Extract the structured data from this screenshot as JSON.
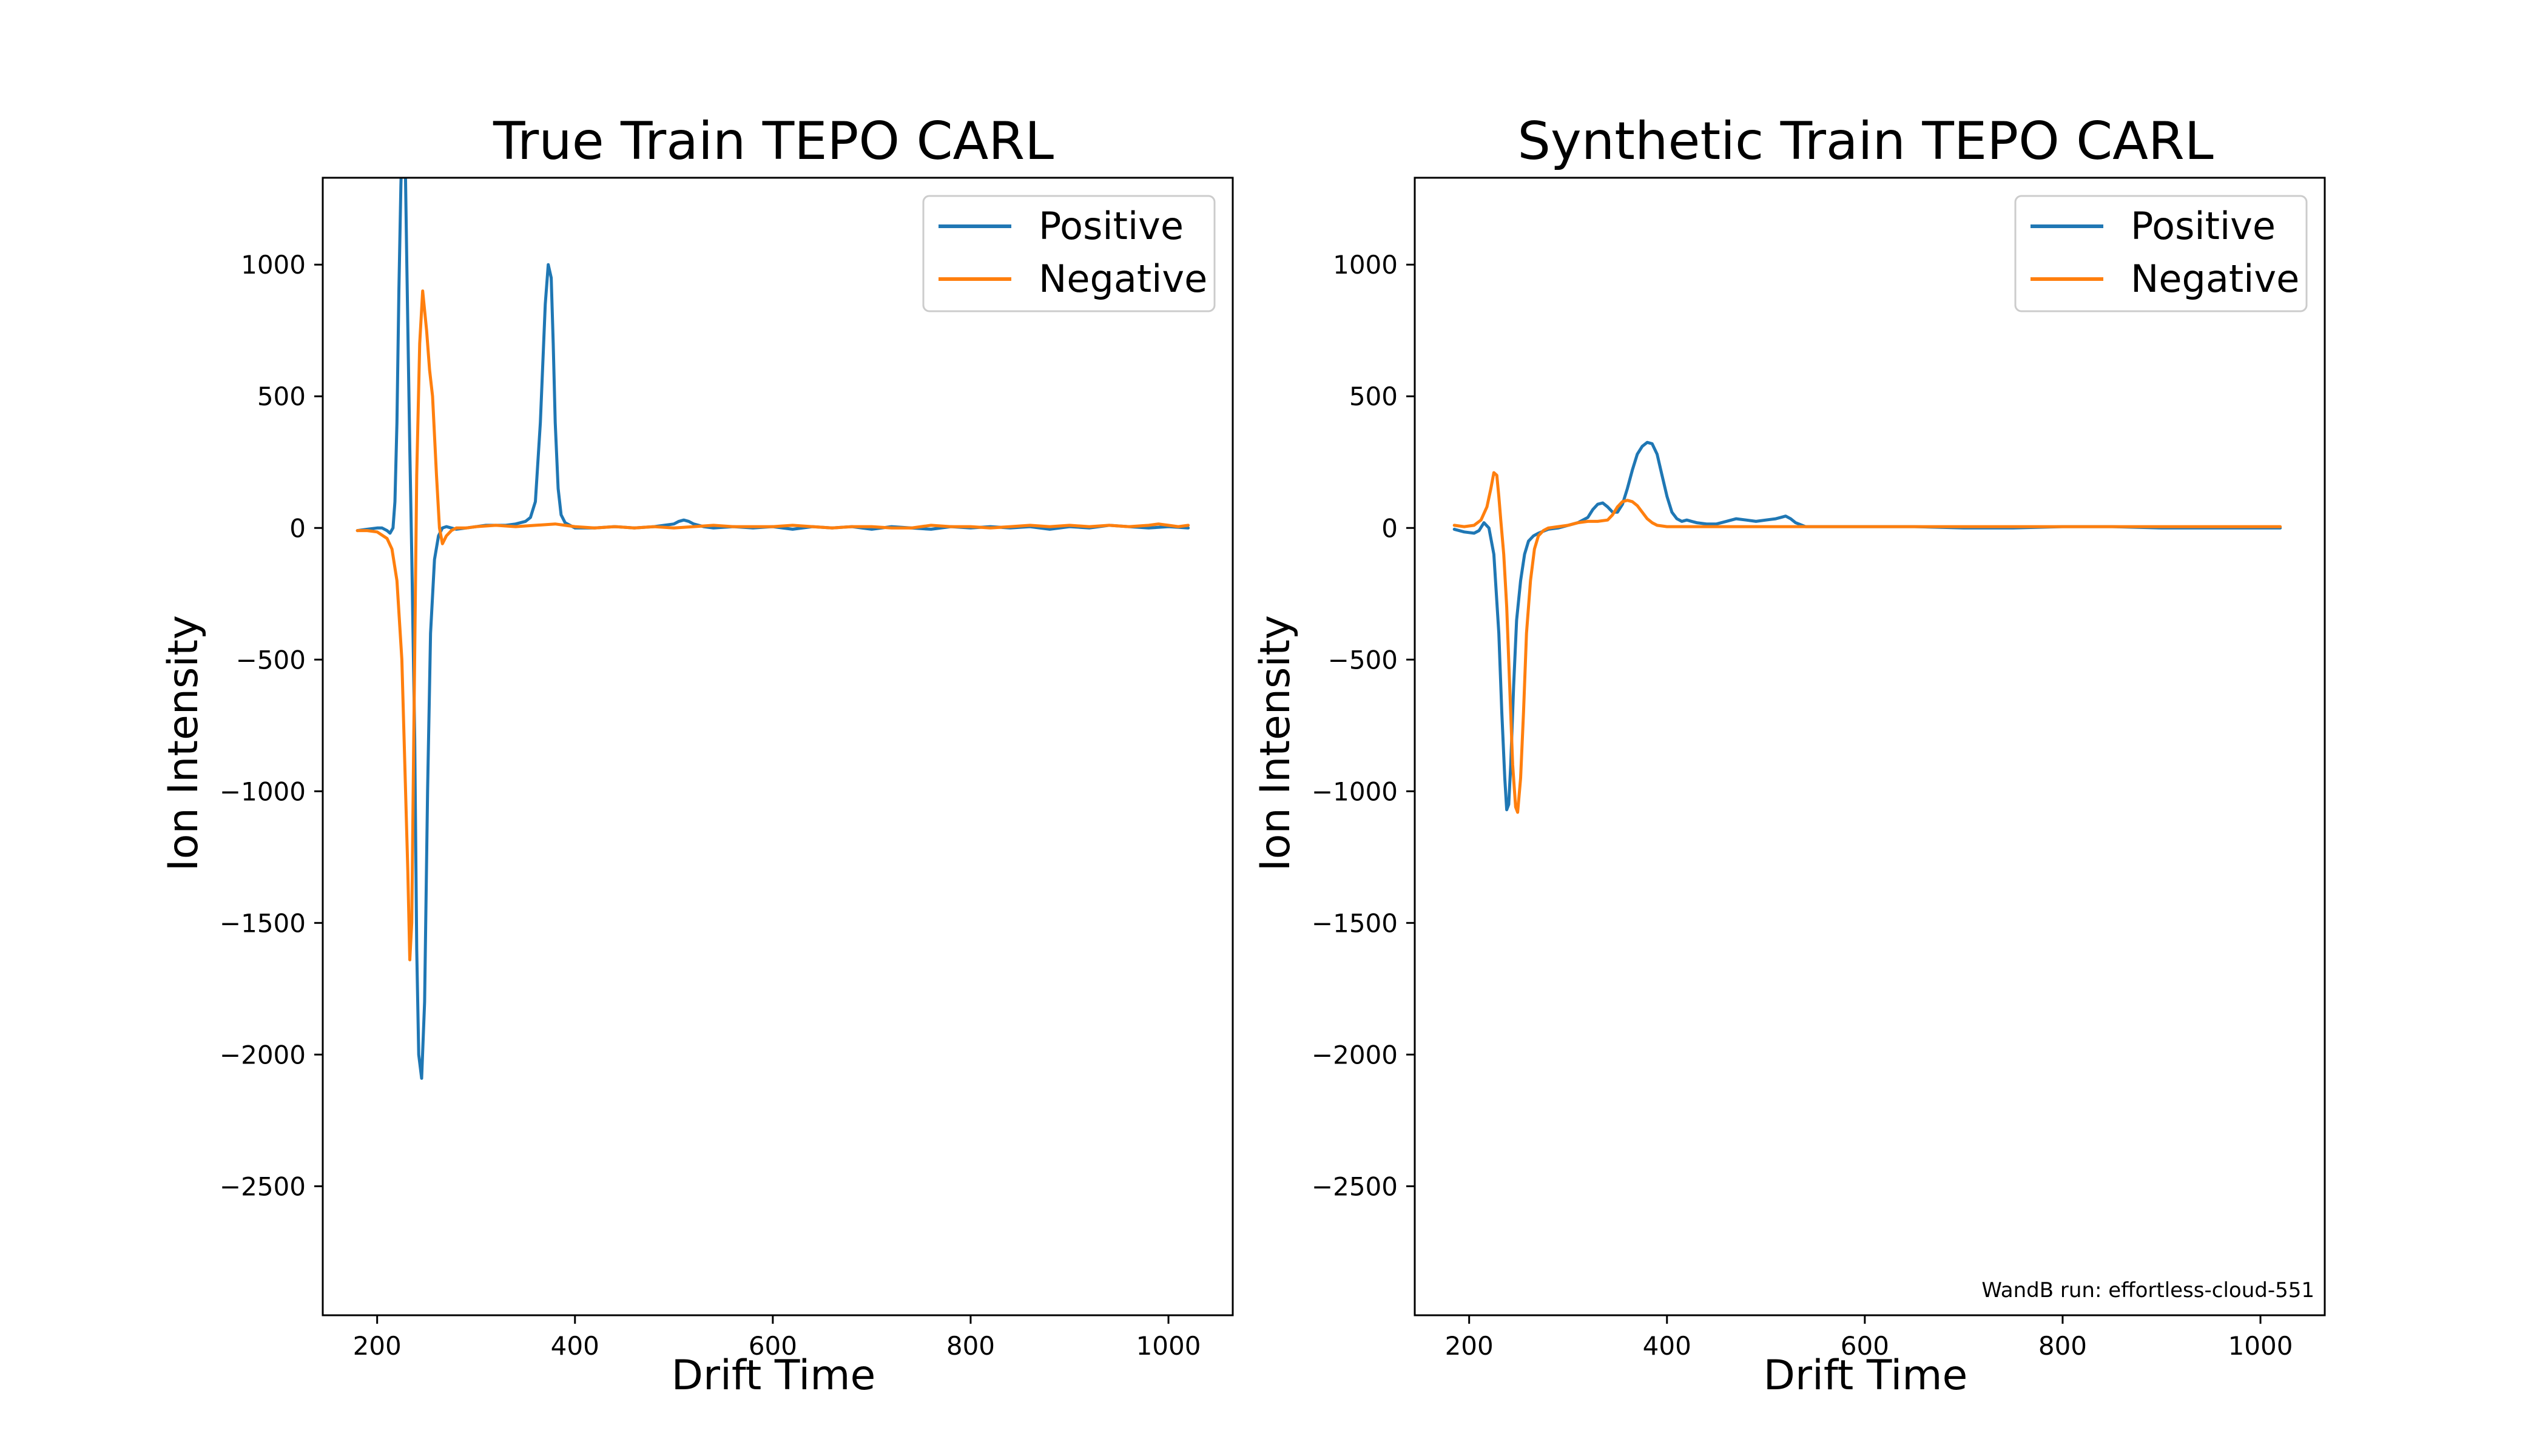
{
  "chart_data": [
    {
      "type": "line",
      "title": "True Train TEPO CARL",
      "xlabel": "Drift Time",
      "ylabel": "Ion Intensity",
      "xlim": [
        145,
        1065
      ],
      "ylim": [
        -2990,
        1330
      ],
      "xticks": [
        200,
        400,
        600,
        800,
        1000
      ],
      "xtick_labels": [
        "200",
        "400",
        "600",
        "800",
        "1000"
      ],
      "yticks": [
        1000,
        500,
        0,
        -500,
        -1000,
        -1500,
        -2000,
        -2500
      ],
      "ytick_labels": [
        "1000",
        "500",
        "0",
        "−500",
        "−1000",
        "−1500",
        "−2000",
        "−2500"
      ],
      "grid": false,
      "legend_position": "top-right",
      "annotation": "",
      "series": [
        {
          "name": "Positive",
          "color": "#1f77b4",
          "x": [
            180,
            190,
            200,
            205,
            210,
            213,
            216,
            218,
            220,
            222,
            224,
            226,
            228,
            230,
            233,
            235,
            238,
            240,
            242,
            245,
            248,
            251,
            254,
            258,
            262,
            266,
            270,
            275,
            280,
            290,
            300,
            310,
            320,
            330,
            340,
            350,
            355,
            360,
            365,
            370,
            373,
            376,
            378,
            380,
            383,
            386,
            390,
            395,
            400,
            410,
            420,
            440,
            460,
            480,
            500,
            505,
            510,
            515,
            520,
            530,
            540,
            560,
            580,
            600,
            620,
            640,
            660,
            680,
            700,
            720,
            740,
            760,
            780,
            800,
            820,
            840,
            860,
            880,
            900,
            920,
            940,
            960,
            980,
            1000,
            1020
          ],
          "y": [
            -10,
            -5,
            0,
            0,
            -10,
            -20,
            0,
            100,
            400,
            900,
            1300,
            1600,
            1500,
            1000,
            300,
            -100,
            -800,
            -1600,
            -2000,
            -2090,
            -1800,
            -1000,
            -400,
            -120,
            -30,
            0,
            5,
            0,
            -5,
            0,
            5,
            10,
            10,
            10,
            15,
            25,
            40,
            100,
            400,
            850,
            1000,
            950,
            700,
            400,
            150,
            50,
            20,
            10,
            0,
            0,
            0,
            5,
            0,
            5,
            15,
            25,
            30,
            25,
            15,
            5,
            0,
            5,
            0,
            5,
            -5,
            5,
            0,
            5,
            -5,
            5,
            0,
            -5,
            5,
            0,
            5,
            0,
            5,
            -5,
            5,
            0,
            10,
            5,
            0,
            5,
            0
          ]
        },
        {
          "name": "Negative",
          "color": "#ff7f0e",
          "x": [
            180,
            190,
            200,
            210,
            215,
            220,
            225,
            228,
            231,
            233,
            235,
            237,
            240,
            243,
            246,
            250,
            253,
            256,
            260,
            263,
            266,
            270,
            275,
            280,
            290,
            300,
            320,
            340,
            360,
            380,
            400,
            420,
            440,
            460,
            480,
            500,
            520,
            540,
            560,
            580,
            600,
            620,
            640,
            660,
            680,
            700,
            720,
            740,
            760,
            780,
            800,
            820,
            840,
            860,
            880,
            900,
            920,
            940,
            960,
            980,
            990,
            1000,
            1010,
            1020
          ],
          "y": [
            -10,
            -10,
            -15,
            -40,
            -80,
            -200,
            -500,
            -900,
            -1300,
            -1640,
            -1500,
            -800,
            200,
            700,
            900,
            750,
            600,
            500,
            200,
            0,
            -60,
            -30,
            -10,
            0,
            0,
            5,
            10,
            5,
            10,
            15,
            5,
            0,
            5,
            0,
            5,
            0,
            5,
            10,
            5,
            5,
            5,
            10,
            5,
            0,
            5,
            5,
            0,
            0,
            10,
            5,
            5,
            0,
            5,
            10,
            5,
            10,
            5,
            10,
            5,
            10,
            15,
            10,
            5,
            10
          ]
        }
      ]
    },
    {
      "type": "line",
      "title": "Synthetic Train TEPO CARL",
      "xlabel": "Drift Time",
      "ylabel": "Ion Intensity",
      "xlim": [
        145,
        1065
      ],
      "ylim": [
        -2990,
        1330
      ],
      "xticks": [
        200,
        400,
        600,
        800,
        1000
      ],
      "xtick_labels": [
        "200",
        "400",
        "600",
        "800",
        "1000"
      ],
      "yticks": [
        1000,
        500,
        0,
        -500,
        -1000,
        -1500,
        -2000,
        -2500
      ],
      "ytick_labels": [
        "1000",
        "500",
        "0",
        "−500",
        "−1000",
        "−1500",
        "−2000",
        "−2500"
      ],
      "grid": false,
      "legend_position": "top-right",
      "annotation": "WandB run: effortless-cloud-551",
      "series": [
        {
          "name": "Positive",
          "color": "#1f77b4",
          "x": [
            185,
            195,
            205,
            210,
            215,
            220,
            225,
            230,
            233,
            236,
            238,
            240,
            242,
            245,
            248,
            252,
            256,
            260,
            265,
            270,
            280,
            290,
            300,
            310,
            320,
            325,
            330,
            335,
            340,
            345,
            350,
            355,
            360,
            365,
            370,
            375,
            380,
            385,
            390,
            395,
            400,
            405,
            410,
            415,
            420,
            425,
            430,
            440,
            450,
            460,
            470,
            480,
            490,
            500,
            510,
            515,
            520,
            525,
            530,
            540,
            560,
            580,
            600,
            650,
            700,
            750,
            800,
            850,
            900,
            950,
            1000,
            1020
          ],
          "y": [
            -5,
            -15,
            -20,
            -10,
            20,
            0,
            -100,
            -400,
            -700,
            -950,
            -1070,
            -1050,
            -900,
            -600,
            -350,
            -200,
            -100,
            -50,
            -30,
            -20,
            -5,
            0,
            10,
            20,
            40,
            70,
            90,
            95,
            80,
            60,
            60,
            90,
            150,
            220,
            280,
            310,
            325,
            320,
            280,
            200,
            120,
            60,
            35,
            25,
            30,
            25,
            20,
            15,
            15,
            25,
            35,
            30,
            25,
            30,
            35,
            40,
            45,
            35,
            20,
            5,
            5,
            5,
            5,
            5,
            0,
            0,
            5,
            5,
            0,
            0,
            0,
            0
          ]
        },
        {
          "name": "Negative",
          "color": "#ff7f0e",
          "x": [
            185,
            195,
            205,
            212,
            218,
            222,
            225,
            228,
            230,
            232,
            235,
            238,
            241,
            244,
            247,
            249,
            252,
            255,
            258,
            262,
            266,
            270,
            275,
            280,
            290,
            300,
            310,
            320,
            330,
            340,
            345,
            350,
            355,
            360,
            365,
            370,
            375,
            380,
            385,
            390,
            400,
            420,
            450,
            500,
            600,
            700,
            800,
            900,
            1000,
            1020
          ],
          "y": [
            10,
            5,
            10,
            30,
            80,
            150,
            210,
            200,
            120,
            30,
            -100,
            -300,
            -600,
            -900,
            -1060,
            -1080,
            -950,
            -700,
            -400,
            -200,
            -80,
            -30,
            -10,
            0,
            5,
            10,
            20,
            25,
            25,
            30,
            50,
            80,
            100,
            105,
            100,
            85,
            60,
            35,
            20,
            10,
            5,
            5,
            5,
            5,
            5,
            5,
            5,
            5,
            5,
            5
          ]
        }
      ]
    }
  ]
}
